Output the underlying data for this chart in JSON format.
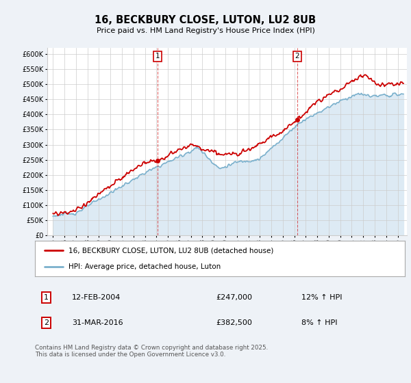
{
  "title": "16, BECKBURY CLOSE, LUTON, LU2 8UB",
  "subtitle": "Price paid vs. HM Land Registry's House Price Index (HPI)",
  "legend_line1": "16, BECKBURY CLOSE, LUTON, LU2 8UB (detached house)",
  "legend_line2": "HPI: Average price, detached house, Luton",
  "footnote": "Contains HM Land Registry data © Crown copyright and database right 2025.\nThis data is licensed under the Open Government Licence v3.0.",
  "sale1_label": "1",
  "sale1_date": "12-FEB-2004",
  "sale1_price": "£247,000",
  "sale1_hpi": "12% ↑ HPI",
  "sale2_label": "2",
  "sale2_date": "31-MAR-2016",
  "sale2_price": "£382,500",
  "sale2_hpi": "8% ↑ HPI",
  "sale1_x": 2004.11,
  "sale1_y": 247000,
  "sale2_x": 2016.25,
  "sale2_y": 382500,
  "ylim": [
    0,
    620000
  ],
  "xlim_left": 1994.5,
  "xlim_right": 2025.8,
  "price_color": "#cc0000",
  "hpi_color": "#7ab0cc",
  "hpi_fill_color": "#ddeaf4",
  "bg_color": "#eef2f7",
  "plot_bg": "#ffffff",
  "grid_color": "#cccccc"
}
